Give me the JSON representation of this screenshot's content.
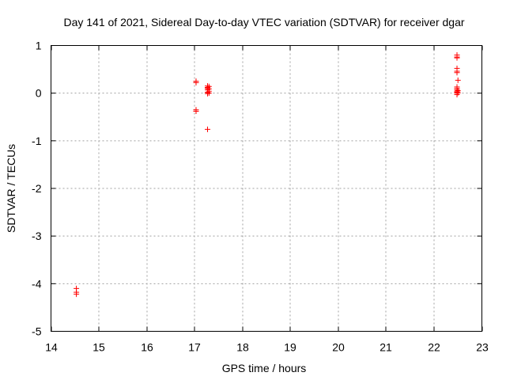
{
  "chart_data": {
    "type": "scatter",
    "title": "Day 141 of 2021, Sidereal Day-to-day VTEC variation (SDTVAR) for receiver dgar",
    "xlabel": "GPS time / hours",
    "ylabel": "SDTVAR / TECUs",
    "xlim": [
      14,
      23
    ],
    "ylim": [
      -5,
      1
    ],
    "x_ticks": [
      14,
      15,
      16,
      17,
      18,
      19,
      20,
      21,
      22,
      23
    ],
    "y_ticks": [
      -5,
      -4,
      -3,
      -2,
      -1,
      0,
      1
    ],
    "grid": true,
    "marker": "plus",
    "marker_color": "#ff0000",
    "series": [
      {
        "name": "SDTVAR",
        "points": [
          [
            14.53,
            -4.1
          ],
          [
            14.53,
            -4.18
          ],
          [
            14.53,
            -4.22
          ],
          [
            17.03,
            0.25
          ],
          [
            17.03,
            0.22
          ],
          [
            17.03,
            -0.35
          ],
          [
            17.03,
            -0.38
          ],
          [
            17.27,
            0.15
          ],
          [
            17.27,
            0.12
          ],
          [
            17.27,
            0.1
          ],
          [
            17.27,
            0.07
          ],
          [
            17.27,
            0.02
          ],
          [
            17.27,
            -0.01
          ],
          [
            17.3,
            0.14
          ],
          [
            17.3,
            0.09
          ],
          [
            17.3,
            0.04
          ],
          [
            17.3,
            0.0
          ],
          [
            17.27,
            -0.76
          ],
          [
            22.48,
            0.8
          ],
          [
            22.48,
            0.76
          ],
          [
            22.48,
            0.74
          ],
          [
            22.48,
            0.52
          ],
          [
            22.48,
            0.46
          ],
          [
            22.48,
            0.43
          ],
          [
            22.5,
            0.27
          ],
          [
            22.48,
            0.13
          ],
          [
            22.48,
            0.1
          ],
          [
            22.48,
            0.07
          ],
          [
            22.48,
            0.04
          ],
          [
            22.48,
            0.02
          ],
          [
            22.48,
            0.0
          ],
          [
            22.48,
            -0.03
          ],
          [
            22.5,
            0.05
          ],
          [
            22.5,
            0.01
          ]
        ]
      }
    ]
  }
}
